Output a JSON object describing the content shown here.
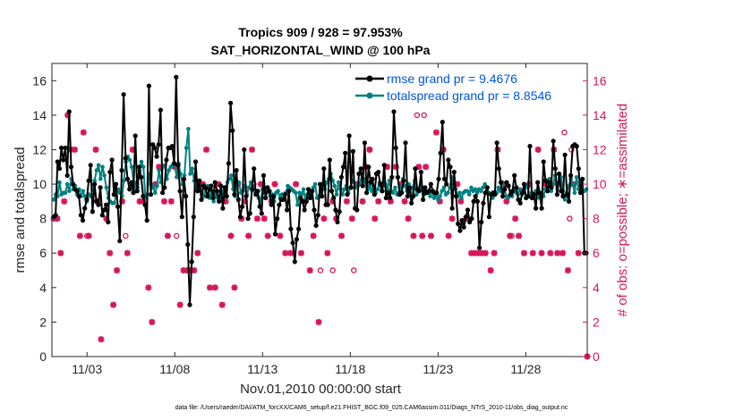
{
  "chart_data": {
    "type": "line",
    "title": "Tropics 909 / 928 = 97.953%",
    "subtitle": "SAT_HORIZONTAL_WIND @ 100 hPa",
    "xlabel": "Nov.01,2010 00:00:00 start",
    "ylabel": "rmse and totalspread",
    "ylabel_right": "# of obs: o=possible; ∗=assimilated",
    "xlim": [
      1,
      31.5
    ],
    "ylim": [
      0,
      17
    ],
    "ylim_right": [
      0,
      17
    ],
    "x_ticks": [
      3,
      8,
      13,
      18,
      23,
      28
    ],
    "x_tick_labels": [
      "11/03",
      "11/08",
      "11/13",
      "11/18",
      "11/23",
      "11/28"
    ],
    "y_ticks": [
      0,
      2,
      4,
      6,
      8,
      10,
      12,
      14,
      16
    ],
    "y_ticks_right": [
      0,
      2,
      4,
      6,
      8,
      10,
      12,
      14,
      16
    ],
    "footnote": "data file: /Users/raeder/DAI/ATM_forcXX/CAM6_setup/f.e21.FHIST_BGC.f09_025.CAM6assim.011/Diags_NTrS_2010-11/obs_diag_output.nc",
    "colors": {
      "rmse": "#000000",
      "spread": "#008080",
      "obs": "#d6165b",
      "legend_text": "#0055dd"
    },
    "series": [
      {
        "name": "rmse grand pr = 9.4676",
        "color": "#000000",
        "values": [
          8.1,
          8.2,
          11.3,
          10.9,
          12.1,
          11.4,
          12.1,
          10.5,
          14.2,
          11.0,
          10.0,
          9.7,
          9.6,
          9.3,
          8.2,
          7.9,
          8.6,
          9.1,
          10.2,
          11.1,
          8.4,
          10.0,
          9.0,
          8.8,
          9.8,
          8.2,
          8.5,
          8.8,
          7.8,
          10.7,
          11.4,
          9.4,
          10.0,
          8.7,
          6.7,
          10.8,
          15.2,
          11.5,
          10.3,
          9.7,
          10.1,
          9.5,
          12.8,
          9.6,
          11.0,
          10.4,
          9.3,
          8.8,
          7.9,
          15.7,
          9.4,
          12.3,
          12.1,
          11.6,
          12.3,
          14.3,
          9.5,
          9.8,
          11.4,
          12.1,
          12.1,
          12.2,
          11.2,
          16.2,
          11.1,
          9.6,
          8.1,
          10.3,
          9.3,
          6.5,
          3.0,
          5.5,
          8.1,
          11.3,
          9.6,
          10.2,
          9.1,
          9.9,
          9.8,
          9.3,
          9.7,
          9.9,
          9.2,
          10.1,
          9.6,
          9.0,
          9.9,
          8.6,
          9.8,
          9.3,
          11.2,
          14.7,
          13.1,
          9.4,
          10.8,
          9.1,
          8.1,
          8.7,
          12.0,
          9.3,
          8.0,
          8.3,
          9.7,
          10.9,
          9.4,
          9.6,
          8.7,
          8.3,
          10.5,
          9.2,
          9.8,
          9.6,
          8.8,
          9.3,
          7.1,
          8.0,
          8.8,
          9.1,
          9.1,
          9.4,
          8.5,
          9.6,
          7.4,
          6.6,
          5.5,
          6.8,
          7.4,
          9.2,
          9.0,
          8.5,
          9.0,
          9.7,
          9.2,
          9.6,
          8.5,
          7.6,
          8.2,
          10.0,
          9.3,
          10.9,
          8.8,
          8.8,
          11.4,
          9.6,
          9.2,
          8.5,
          7.8,
          8.4,
          10.4,
          11.0,
          11.8,
          9.4,
          12.8,
          9.8,
          11.9,
          8.6,
          8.5,
          10.6,
          10.9,
          9.9,
          12.4,
          9.5,
          11.0,
          10.1,
          10.3,
          9.4,
          10.6,
          10.7,
          10.0,
          9.6,
          11.1,
          9.2,
          9.5,
          9.2,
          10.4,
          14.2,
          12.1,
          10.4,
          9.4,
          9.5,
          10.2,
          12.4,
          9.3,
          9.8,
          8.9,
          9.3,
          10.9,
          9.7,
          9.6,
          10.7,
          9.1,
          9.8,
          9.5,
          9.6,
          10.0,
          9.6,
          9.5,
          9.5,
          10.3,
          11.8,
          13.6,
          10.3,
          10.0,
          11.4,
          11.0,
          8.6,
          10.7,
          9.3,
          7.7,
          7.3,
          7.9,
          7.5,
          8.1,
          8.5,
          7.8,
          8.0,
          9.0,
          9.3,
          9.0,
          6.3,
          7.8,
          8.9,
          9.5,
          9.8,
          8.1,
          9.4,
          9.5,
          9.4,
          12.4,
          10.9,
          10.1,
          9.3,
          9.7,
          10.1,
          9.9,
          9.4,
          9.6,
          10.5,
          9.8,
          9.1,
          8.9,
          9.5,
          10.0,
          9.2,
          9.3,
          12.2,
          9.2,
          9.4,
          8.6,
          10.1,
          9.5,
          8.6,
          11.3,
          10.2,
          9.6,
          10.1,
          9.8,
          12.5,
          10.9,
          9.4,
          10.6,
          9.6,
          9.3,
          11.7,
          9.4,
          9.0,
          10.5,
          12.2,
          12.3,
          12.2,
          10.9,
          9.5,
          10.3,
          6.0,
          6.0
        ]
      },
      {
        "name": "totalspread grand pr = 8.8546",
        "color": "#008080",
        "values": [
          9.1,
          9.4,
          9.3,
          10.1,
          9.4,
          9.5,
          9.5,
          10.0,
          9.6,
          10.3,
          9.7,
          9.9,
          9.4,
          9.7,
          9.3,
          9.6,
          9.3,
          9.0,
          9.4,
          9.3,
          9.7,
          10.2,
          10.8,
          11.1,
          10.3,
          11.0,
          10.5,
          9.8,
          9.2,
          9.0,
          8.9,
          8.9,
          9.3,
          9.7,
          9.5,
          9.3,
          10.2,
          11.3,
          11.6,
          11.4,
          11.0,
          10.1,
          9.6,
          9.8,
          10.8,
          11.3,
          11.0,
          9.2,
          9.4,
          10.6,
          10.0,
          9.8,
          9.5,
          9.9,
          10.8,
          10.1,
          11.0,
          11.1,
          10.3,
          10.8,
          11.0,
          11.1,
          11.2,
          10.4,
          11.2,
          10.6,
          10.0,
          10.5,
          12.1,
          13.2,
          10.6,
          10.9,
          10.2,
          9.8,
          9.6,
          9.7,
          9.4,
          9.3,
          9.8,
          9.9,
          9.2,
          9.6,
          9.0,
          9.4,
          9.2,
          9.0,
          9.2,
          9.6,
          9.8,
          10.1,
          10.3,
          10.5,
          9.7,
          9.3,
          10.0,
          10.1,
          9.5,
          9.6,
          9.9,
          9.4,
          9.8,
          10.1,
          9.9,
          9.6,
          9.5,
          9.2,
          8.9,
          9.7,
          9.5,
          9.5,
          9.6,
          9.3,
          9.4,
          9.0,
          9.5,
          9.6,
          9.2,
          9.4,
          9.2,
          9.5,
          9.9,
          9.8,
          9.7,
          9.6,
          9.5,
          8.8,
          9.5,
          9.4,
          9.7,
          9.1,
          9.4,
          9.2,
          9.6,
          9.8,
          10.0,
          9.2,
          9.3,
          9.8,
          10.0,
          9.7,
          10.1,
          10.3,
          10.6,
          10.2,
          9.9,
          9.4,
          10.1,
          9.7,
          9.4,
          9.7,
          9.9,
          9.5,
          9.8,
          10.2,
          10.1,
          9.8,
          9.9,
          10.0,
          10.6,
          10.3,
          10.1,
          9.7,
          9.9,
          9.6,
          9.9,
          9.5,
          9.7,
          10.1,
          9.6,
          9.9,
          10.0,
          9.7,
          10.2,
          9.6,
          9.5,
          9.8,
          9.4,
          9.5,
          9.8,
          10.3,
          9.9,
          9.6,
          10.0,
          9.5,
          9.8,
          10.2,
          9.4,
          9.7,
          9.9,
          9.7,
          9.4,
          9.5,
          9.5,
          9.3,
          9.6,
          9.2,
          9.4,
          9.1,
          9.3,
          9.6,
          9.8,
          9.4,
          9.5,
          9.8,
          10.4,
          10.0,
          9.7,
          9.3,
          9.5,
          9.2,
          9.5,
          9.6,
          9.6,
          9.4,
          9.8,
          9.6,
          9.7,
          9.5,
          9.7,
          9.6,
          9.8,
          10.0,
          9.6,
          9.5,
          9.4,
          9.2,
          9.4,
          9.5,
          9.8,
          9.6,
          10.1,
          9.7,
          9.3,
          9.2,
          9.4,
          9.3,
          9.7,
          9.5,
          9.4,
          9.7,
          9.4,
          9.5,
          9.9,
          9.8,
          9.3,
          9.5,
          9.2,
          9.6,
          9.6,
          9.2,
          9.4,
          9.3,
          9.7,
          9.6,
          10.3,
          9.6,
          10.0,
          10.5,
          9.4,
          10.1,
          10.4,
          9.6,
          9.1,
          9.5,
          9.9,
          10.3,
          10.0,
          9.5,
          10.4,
          9.7,
          10.1,
          9.6,
          9.6,
          9.7
        ]
      }
    ],
    "obs_possible": [
      {
        "x": 1.3,
        "y": 8
      },
      {
        "x": 3.0,
        "y": 7
      },
      {
        "x": 5.2,
        "y": 7
      },
      {
        "x": 8.1,
        "y": 7
      },
      {
        "x": 12.5,
        "y": 10
      },
      {
        "x": 16.3,
        "y": 5
      },
      {
        "x": 17.0,
        "y": 5
      },
      {
        "x": 18.2,
        "y": 5
      },
      {
        "x": 19.1,
        "y": 12
      },
      {
        "x": 21.8,
        "y": 14
      },
      {
        "x": 22.2,
        "y": 14
      },
      {
        "x": 27.2,
        "y": 7
      },
      {
        "x": 30.2,
        "y": 13
      },
      {
        "x": 30.6,
        "y": 12
      },
      {
        "x": 30.5,
        "y": 8
      }
    ],
    "obs_assimilated": [
      {
        "x": 1.1,
        "y": 8
      },
      {
        "x": 1.3,
        "y": 8
      },
      {
        "x": 1.5,
        "y": 6
      },
      {
        "x": 1.7,
        "y": 9
      },
      {
        "x": 1.9,
        "y": 14
      },
      {
        "x": 2.1,
        "y": 12
      },
      {
        "x": 2.3,
        "y": 12
      },
      {
        "x": 2.6,
        "y": 7
      },
      {
        "x": 2.8,
        "y": 13
      },
      {
        "x": 3.1,
        "y": 7
      },
      {
        "x": 3.5,
        "y": 12
      },
      {
        "x": 3.6,
        "y": 9
      },
      {
        "x": 3.8,
        "y": 1
      },
      {
        "x": 4.1,
        "y": 8
      },
      {
        "x": 4.3,
        "y": 6
      },
      {
        "x": 4.5,
        "y": 3
      },
      {
        "x": 4.7,
        "y": 5
      },
      {
        "x": 5.0,
        "y": 9
      },
      {
        "x": 5.3,
        "y": 6
      },
      {
        "x": 5.6,
        "y": 12
      },
      {
        "x": 5.8,
        "y": 10
      },
      {
        "x": 6.0,
        "y": 9
      },
      {
        "x": 6.2,
        "y": 9
      },
      {
        "x": 6.5,
        "y": 4
      },
      {
        "x": 6.7,
        "y": 2
      },
      {
        "x": 6.9,
        "y": 10
      },
      {
        "x": 7.1,
        "y": 11
      },
      {
        "x": 7.4,
        "y": 9
      },
      {
        "x": 7.6,
        "y": 7
      },
      {
        "x": 7.8,
        "y": 9
      },
      {
        "x": 8.0,
        "y": 11
      },
      {
        "x": 8.3,
        "y": 3
      },
      {
        "x": 8.5,
        "y": 5
      },
      {
        "x": 8.7,
        "y": 5
      },
      {
        "x": 8.9,
        "y": 5
      },
      {
        "x": 9.1,
        "y": 5
      },
      {
        "x": 9.3,
        "y": 6
      },
      {
        "x": 9.6,
        "y": 10
      },
      {
        "x": 9.8,
        "y": 12
      },
      {
        "x": 10.0,
        "y": 4
      },
      {
        "x": 10.3,
        "y": 4
      },
      {
        "x": 10.5,
        "y": 10
      },
      {
        "x": 10.7,
        "y": 3
      },
      {
        "x": 10.9,
        "y": 9
      },
      {
        "x": 11.2,
        "y": 7
      },
      {
        "x": 11.4,
        "y": 4
      },
      {
        "x": 11.6,
        "y": 10
      },
      {
        "x": 11.8,
        "y": 8
      },
      {
        "x": 12.0,
        "y": 9
      },
      {
        "x": 12.2,
        "y": 7
      },
      {
        "x": 12.4,
        "y": 12
      },
      {
        "x": 12.7,
        "y": 8
      },
      {
        "x": 12.9,
        "y": 10
      },
      {
        "x": 13.1,
        "y": 8
      },
      {
        "x": 13.3,
        "y": 7
      },
      {
        "x": 13.5,
        "y": 9
      },
      {
        "x": 13.7,
        "y": 10
      },
      {
        "x": 14.0,
        "y": 7
      },
      {
        "x": 14.3,
        "y": 6
      },
      {
        "x": 14.6,
        "y": 6
      },
      {
        "x": 14.9,
        "y": 10
      },
      {
        "x": 15.2,
        "y": 6
      },
      {
        "x": 15.4,
        "y": 9
      },
      {
        "x": 15.7,
        "y": 5
      },
      {
        "x": 15.9,
        "y": 7
      },
      {
        "x": 16.2,
        "y": 2
      },
      {
        "x": 16.5,
        "y": 8
      },
      {
        "x": 16.7,
        "y": 6
      },
      {
        "x": 17.0,
        "y": 9
      },
      {
        "x": 17.2,
        "y": 8
      },
      {
        "x": 17.5,
        "y": 7
      },
      {
        "x": 17.8,
        "y": 9
      },
      {
        "x": 18.1,
        "y": 8
      },
      {
        "x": 18.4,
        "y": 10
      },
      {
        "x": 18.7,
        "y": 9
      },
      {
        "x": 18.9,
        "y": 11
      },
      {
        "x": 19.1,
        "y": 12
      },
      {
        "x": 19.4,
        "y": 8
      },
      {
        "x": 19.6,
        "y": 9
      },
      {
        "x": 19.9,
        "y": 10
      },
      {
        "x": 20.1,
        "y": 11
      },
      {
        "x": 20.3,
        "y": 9
      },
      {
        "x": 20.6,
        "y": 11
      },
      {
        "x": 20.9,
        "y": 10
      },
      {
        "x": 21.1,
        "y": 9
      },
      {
        "x": 21.3,
        "y": 8
      },
      {
        "x": 21.6,
        "y": 7
      },
      {
        "x": 21.9,
        "y": 11
      },
      {
        "x": 22.1,
        "y": 7
      },
      {
        "x": 22.3,
        "y": 11
      },
      {
        "x": 22.6,
        "y": 7
      },
      {
        "x": 22.9,
        "y": 13
      },
      {
        "x": 23.1,
        "y": 9
      },
      {
        "x": 23.3,
        "y": 12
      },
      {
        "x": 23.6,
        "y": 7
      },
      {
        "x": 23.8,
        "y": 8
      },
      {
        "x": 24.1,
        "y": 10
      },
      {
        "x": 24.3,
        "y": 9
      },
      {
        "x": 24.6,
        "y": 8
      },
      {
        "x": 24.9,
        "y": 6
      },
      {
        "x": 25.1,
        "y": 6
      },
      {
        "x": 25.3,
        "y": 6
      },
      {
        "x": 25.5,
        "y": 6
      },
      {
        "x": 25.7,
        "y": 6
      },
      {
        "x": 26.0,
        "y": 5
      },
      {
        "x": 26.2,
        "y": 6
      },
      {
        "x": 26.4,
        "y": 12
      },
      {
        "x": 26.7,
        "y": 10
      },
      {
        "x": 26.9,
        "y": 9
      },
      {
        "x": 27.1,
        "y": 7
      },
      {
        "x": 27.4,
        "y": 8
      },
      {
        "x": 27.6,
        "y": 7
      },
      {
        "x": 27.9,
        "y": 6
      },
      {
        "x": 28.2,
        "y": 10
      },
      {
        "x": 28.4,
        "y": 6
      },
      {
        "x": 28.7,
        "y": 12
      },
      {
        "x": 28.9,
        "y": 6
      },
      {
        "x": 29.1,
        "y": 10
      },
      {
        "x": 29.4,
        "y": 6
      },
      {
        "x": 29.6,
        "y": 12
      },
      {
        "x": 29.8,
        "y": 6
      },
      {
        "x": 30.1,
        "y": 6
      },
      {
        "x": 30.4,
        "y": 5
      },
      {
        "x": 30.7,
        "y": 10
      },
      {
        "x": 31.0,
        "y": 6
      },
      {
        "x": 31.5,
        "y": 0
      }
    ]
  }
}
